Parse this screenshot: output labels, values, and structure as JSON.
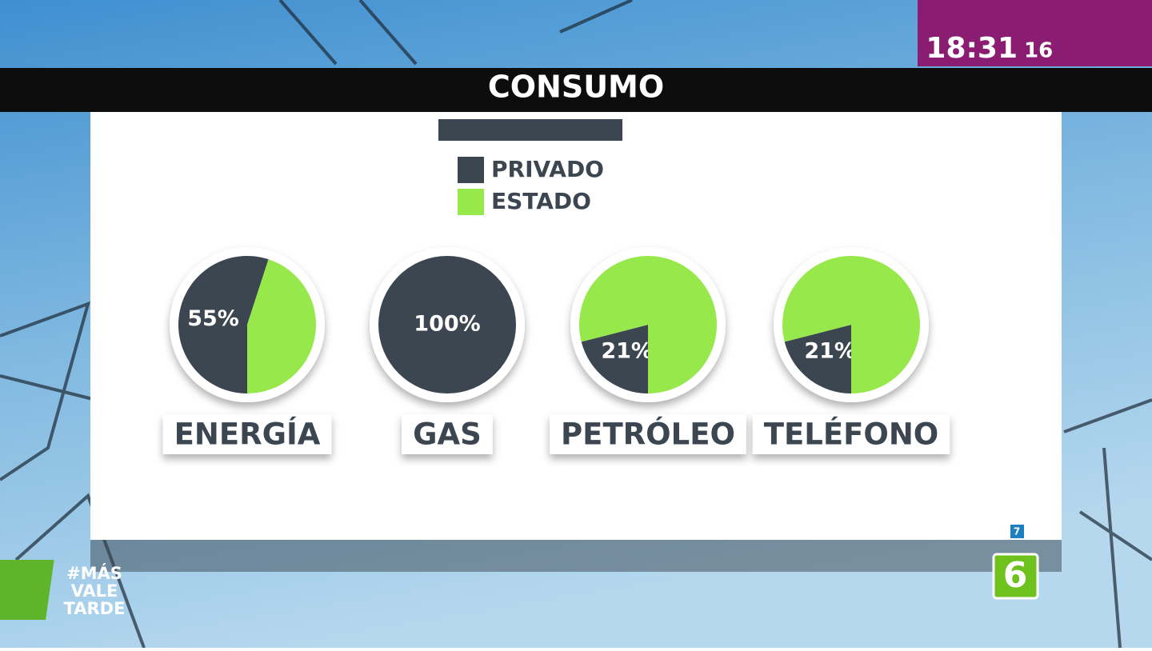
{
  "header": {
    "title": "CONSUMO",
    "clock": "18:31",
    "clock_seconds": "16"
  },
  "branding": {
    "show_lines": [
      "#MÁS",
      "VALE",
      "TARDE"
    ],
    "channel": "6",
    "rating": "7"
  },
  "chart_data": [
    {
      "type": "pie",
      "title": "ENERGÍA",
      "categories": [
        "PRIVADO",
        "ESTADO"
      ],
      "colors": [
        "#3b4650",
        "#97e84a"
      ],
      "values": [
        55,
        45
      ],
      "value_labels": [
        "55%",
        null
      ]
    },
    {
      "type": "pie",
      "title": "GAS",
      "categories": [
        "PRIVADO",
        "ESTADO"
      ],
      "colors": [
        "#3b4650",
        "#97e84a"
      ],
      "values": [
        100,
        0
      ],
      "value_labels": [
        "100%",
        null
      ]
    },
    {
      "type": "pie",
      "title": "PETRÓLEO",
      "categories": [
        "PRIVADO",
        "ESTADO"
      ],
      "colors": [
        "#3b4650",
        "#97e84a"
      ],
      "values": [
        21,
        79
      ],
      "value_labels": [
        "21%",
        null
      ]
    },
    {
      "type": "pie",
      "title": "TELÉFONO",
      "categories": [
        "PRIVADO",
        "ESTADO"
      ],
      "colors": [
        "#3b4650",
        "#97e84a"
      ],
      "values": [
        21,
        79
      ],
      "value_labels": [
        "21%",
        null
      ]
    }
  ]
}
